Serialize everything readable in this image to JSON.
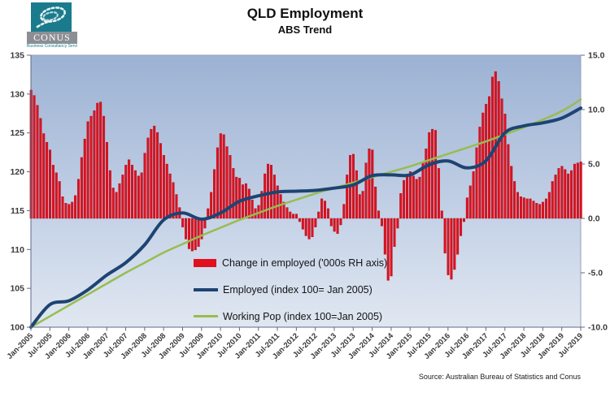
{
  "header": {
    "title": "QLD Employment",
    "subtitle": "ABS Trend"
  },
  "logo": {
    "name": "CONUS",
    "tagline": "Business Consultancy Services",
    "teal": "#1a7b8c",
    "gray": "#8b8f94"
  },
  "source": "Source: Australian Bureau of Statistics and Conus",
  "legend": [
    {
      "swatch": "bar",
      "color": "#e0101e",
      "label": "Change in employed ('000s RH axis)"
    },
    {
      "swatch": "line",
      "color": "#1d4472",
      "label": "Employed (index 100= Jan 2005)"
    },
    {
      "swatch": "line",
      "color": "#97bd4f",
      "label": "Working Pop (index 100=Jan 2005)"
    }
  ],
  "chart_data": {
    "type": "bar+line",
    "title": "QLD Employment",
    "subtitle": "ABS Trend",
    "grid": false,
    "legend_position": "inside lower-middle",
    "plot_bg_gradient": [
      "#9cb2d3",
      "#c5d2e7",
      "#e0e7f1"
    ],
    "left_axis": {
      "min": 100,
      "max": 135,
      "step": 5,
      "tick_labels": [
        "135",
        "130",
        "125",
        "120",
        "115",
        "110",
        "105",
        "100"
      ]
    },
    "right_axis": {
      "min": -10,
      "max": 15,
      "step": 5,
      "tick_labels": [
        "15.0",
        "10.0",
        "5.0",
        "0.0",
        "-5.0",
        "-10.0"
      ]
    },
    "x_tick_labels": [
      "Jan-2005",
      "Jul-2005",
      "Jan-2006",
      "Jul-2006",
      "Jan-2007",
      "Jul-2007",
      "Jan-2008",
      "Jul-2008",
      "Jan-2009",
      "Jul-2009",
      "Jan-2010",
      "Jul-2010",
      "Jan-2011",
      "Jul-2011",
      "Jan-2012",
      "Jul-2012",
      "Jan-2013",
      "Jul-2013",
      "Jan-2014",
      "Jul-2014",
      "Jan-2015",
      "Jul-2015",
      "Jan-2016",
      "Jul-2016",
      "Jan-2017",
      "Jul-2017",
      "Jan-2018",
      "Jul-2018",
      "Jan-2019",
      "Jul-2019"
    ],
    "bars": {
      "name": "Change in employed ('000s RH axis)",
      "axis": "right",
      "color": "#e0101e",
      "edge_color": "#a50d19",
      "start": "Jan-2005",
      "freq": "monthly",
      "values": [
        11.8,
        11.3,
        10.4,
        9.2,
        7.8,
        7.0,
        6.3,
        4.9,
        4.2,
        3.4,
        2.0,
        1.4,
        1.3,
        1.5,
        2.1,
        3.6,
        5.6,
        7.3,
        8.9,
        9.4,
        9.9,
        10.6,
        10.7,
        9.4,
        7.0,
        4.4,
        2.8,
        2.4,
        3.2,
        4.0,
        4.9,
        5.4,
        4.9,
        4.4,
        3.9,
        4.2,
        6.0,
        7.4,
        8.2,
        8.5,
        7.9,
        6.9,
        5.8,
        5.0,
        4.1,
        3.3,
        2.2,
        1.0,
        -0.8,
        -1.9,
        -2.8,
        -3.0,
        -2.9,
        -2.6,
        -1.9,
        -0.9,
        0.9,
        2.4,
        4.5,
        6.5,
        7.8,
        7.7,
        6.6,
        5.8,
        4.6,
        3.8,
        3.7,
        3.1,
        3.2,
        2.7,
        1.7,
        0.9,
        1.2,
        2.5,
        4.1,
        5.0,
        4.9,
        4.0,
        3.0,
        2.2,
        1.5,
        1.0,
        0.6,
        0.4,
        0.4,
        -0.3,
        -1.0,
        -1.6,
        -1.9,
        -1.7,
        -0.8,
        0.6,
        1.8,
        1.6,
        0.9,
        -0.7,
        -1.2,
        -1.4,
        -0.6,
        1.3,
        4.0,
        5.8,
        5.9,
        4.4,
        2.2,
        2.5,
        5.1,
        6.4,
        6.3,
        2.9,
        0.7,
        -0.7,
        -3.3,
        -5.7,
        -5.3,
        -2.6,
        -0.9,
        2.3,
        3.5,
        4.0,
        4.3,
        3.9,
        3.6,
        3.8,
        5.1,
        6.4,
        7.9,
        8.2,
        8.1,
        4.6,
        0.7,
        -3.2,
        -5.2,
        -5.6,
        -4.7,
        -3.3,
        -1.6,
        -0.3,
        1.9,
        3.0,
        4.3,
        6.5,
        8.4,
        9.7,
        10.5,
        11.2,
        13.0,
        13.5,
        12.6,
        11.0,
        9.6,
        6.8,
        4.8,
        3.4,
        2.4,
        2.0,
        1.9,
        1.8,
        1.8,
        1.6,
        1.4,
        1.3,
        1.5,
        1.8,
        2.4,
        3.4,
        4.0,
        4.6,
        4.8,
        4.5,
        4.1,
        4.4,
        5.0,
        5.1,
        5.2
      ]
    },
    "series": [
      {
        "name": "Employed (index 100= Jan 2005)",
        "axis": "left",
        "color": "#1d4472",
        "width": 4,
        "x_labels": "x_tick_labels",
        "values": [
          100.0,
          102.9,
          103.4,
          104.8,
          106.7,
          108.3,
          110.6,
          113.8,
          114.7,
          113.9,
          114.7,
          116.2,
          116.9,
          117.4,
          117.5,
          117.6,
          117.9,
          118.3,
          119.5,
          119.6,
          119.6,
          120.9,
          121.4,
          120.5,
          121.4,
          125.0,
          125.9,
          126.3,
          126.9,
          128.2
        ]
      },
      {
        "name": "Working Pop (index 100=Jan 2005)",
        "axis": "left",
        "color": "#97bd4f",
        "width": 2.5,
        "x_labels": "x_tick_labels",
        "values": [
          100.0,
          101.4,
          102.8,
          104.2,
          105.6,
          107.0,
          108.3,
          109.6,
          110.7,
          111.8,
          112.8,
          113.8,
          114.7,
          115.6,
          116.4,
          117.2,
          117.9,
          118.6,
          119.3,
          120.0,
          120.7,
          121.5,
          122.3,
          123.1,
          123.9,
          124.8,
          125.7,
          126.7,
          127.8,
          129.3
        ]
      }
    ]
  }
}
